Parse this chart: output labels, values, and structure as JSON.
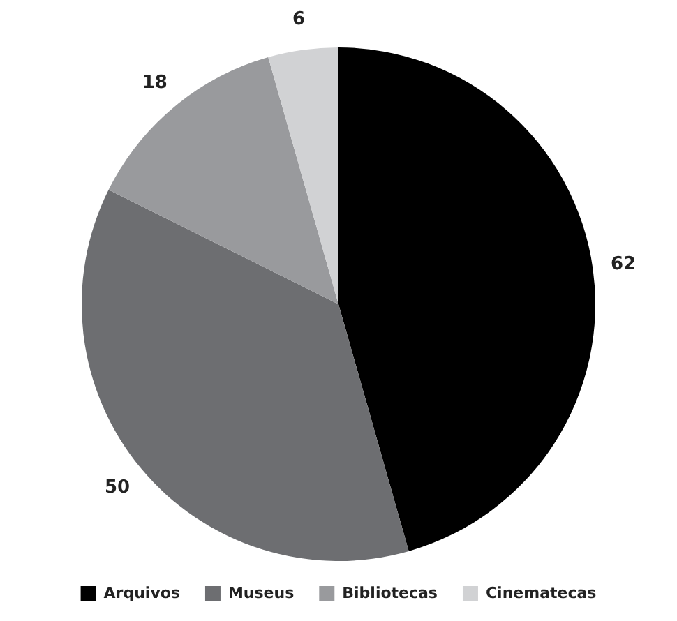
{
  "chart_data": {
    "type": "pie",
    "categories": [
      "Arquivos",
      "Museus",
      "Bibliotecas",
      "Cinematecas"
    ],
    "values": [
      62,
      50,
      18,
      6
    ],
    "colors": [
      "#000000",
      "#6d6e71",
      "#999a9d",
      "#d1d2d4"
    ],
    "data_labels": true,
    "legend": "bottom"
  }
}
